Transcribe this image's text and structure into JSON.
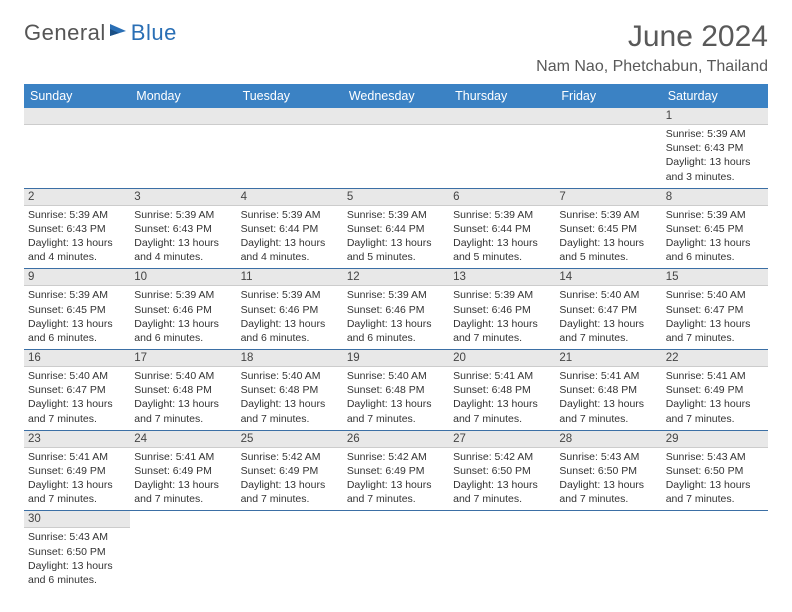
{
  "logo": {
    "text1": "General",
    "text2": "Blue"
  },
  "title": "June 2024",
  "location": "Nam Nao, Phetchabun, Thailand",
  "colors": {
    "header_bg": "#3b82c4",
    "header_text": "#ffffff",
    "row_divider": "#3b6fa5",
    "daynum_bg": "#e8e8e8",
    "title_color": "#595959"
  },
  "dayHeaders": [
    "Sunday",
    "Monday",
    "Tuesday",
    "Wednesday",
    "Thursday",
    "Friday",
    "Saturday"
  ],
  "weeks": [
    [
      null,
      null,
      null,
      null,
      null,
      null,
      {
        "n": 1,
        "sunrise": "5:39 AM",
        "sunset": "6:43 PM",
        "daylight": "13 hours and 3 minutes."
      }
    ],
    [
      {
        "n": 2,
        "sunrise": "5:39 AM",
        "sunset": "6:43 PM",
        "daylight": "13 hours and 4 minutes."
      },
      {
        "n": 3,
        "sunrise": "5:39 AM",
        "sunset": "6:43 PM",
        "daylight": "13 hours and 4 minutes."
      },
      {
        "n": 4,
        "sunrise": "5:39 AM",
        "sunset": "6:44 PM",
        "daylight": "13 hours and 4 minutes."
      },
      {
        "n": 5,
        "sunrise": "5:39 AM",
        "sunset": "6:44 PM",
        "daylight": "13 hours and 5 minutes."
      },
      {
        "n": 6,
        "sunrise": "5:39 AM",
        "sunset": "6:44 PM",
        "daylight": "13 hours and 5 minutes."
      },
      {
        "n": 7,
        "sunrise": "5:39 AM",
        "sunset": "6:45 PM",
        "daylight": "13 hours and 5 minutes."
      },
      {
        "n": 8,
        "sunrise": "5:39 AM",
        "sunset": "6:45 PM",
        "daylight": "13 hours and 6 minutes."
      }
    ],
    [
      {
        "n": 9,
        "sunrise": "5:39 AM",
        "sunset": "6:45 PM",
        "daylight": "13 hours and 6 minutes."
      },
      {
        "n": 10,
        "sunrise": "5:39 AM",
        "sunset": "6:46 PM",
        "daylight": "13 hours and 6 minutes."
      },
      {
        "n": 11,
        "sunrise": "5:39 AM",
        "sunset": "6:46 PM",
        "daylight": "13 hours and 6 minutes."
      },
      {
        "n": 12,
        "sunrise": "5:39 AM",
        "sunset": "6:46 PM",
        "daylight": "13 hours and 6 minutes."
      },
      {
        "n": 13,
        "sunrise": "5:39 AM",
        "sunset": "6:46 PM",
        "daylight": "13 hours and 7 minutes."
      },
      {
        "n": 14,
        "sunrise": "5:40 AM",
        "sunset": "6:47 PM",
        "daylight": "13 hours and 7 minutes."
      },
      {
        "n": 15,
        "sunrise": "5:40 AM",
        "sunset": "6:47 PM",
        "daylight": "13 hours and 7 minutes."
      }
    ],
    [
      {
        "n": 16,
        "sunrise": "5:40 AM",
        "sunset": "6:47 PM",
        "daylight": "13 hours and 7 minutes."
      },
      {
        "n": 17,
        "sunrise": "5:40 AM",
        "sunset": "6:48 PM",
        "daylight": "13 hours and 7 minutes."
      },
      {
        "n": 18,
        "sunrise": "5:40 AM",
        "sunset": "6:48 PM",
        "daylight": "13 hours and 7 minutes."
      },
      {
        "n": 19,
        "sunrise": "5:40 AM",
        "sunset": "6:48 PM",
        "daylight": "13 hours and 7 minutes."
      },
      {
        "n": 20,
        "sunrise": "5:41 AM",
        "sunset": "6:48 PM",
        "daylight": "13 hours and 7 minutes."
      },
      {
        "n": 21,
        "sunrise": "5:41 AM",
        "sunset": "6:48 PM",
        "daylight": "13 hours and 7 minutes."
      },
      {
        "n": 22,
        "sunrise": "5:41 AM",
        "sunset": "6:49 PM",
        "daylight": "13 hours and 7 minutes."
      }
    ],
    [
      {
        "n": 23,
        "sunrise": "5:41 AM",
        "sunset": "6:49 PM",
        "daylight": "13 hours and 7 minutes."
      },
      {
        "n": 24,
        "sunrise": "5:41 AM",
        "sunset": "6:49 PM",
        "daylight": "13 hours and 7 minutes."
      },
      {
        "n": 25,
        "sunrise": "5:42 AM",
        "sunset": "6:49 PM",
        "daylight": "13 hours and 7 minutes."
      },
      {
        "n": 26,
        "sunrise": "5:42 AM",
        "sunset": "6:49 PM",
        "daylight": "13 hours and 7 minutes."
      },
      {
        "n": 27,
        "sunrise": "5:42 AM",
        "sunset": "6:50 PM",
        "daylight": "13 hours and 7 minutes."
      },
      {
        "n": 28,
        "sunrise": "5:43 AM",
        "sunset": "6:50 PM",
        "daylight": "13 hours and 7 minutes."
      },
      {
        "n": 29,
        "sunrise": "5:43 AM",
        "sunset": "6:50 PM",
        "daylight": "13 hours and 7 minutes."
      }
    ],
    [
      {
        "n": 30,
        "sunrise": "5:43 AM",
        "sunset": "6:50 PM",
        "daylight": "13 hours and 6 minutes."
      },
      null,
      null,
      null,
      null,
      null,
      null
    ]
  ],
  "labels": {
    "sunrise": "Sunrise:",
    "sunset": "Sunset:",
    "daylight": "Daylight:"
  }
}
